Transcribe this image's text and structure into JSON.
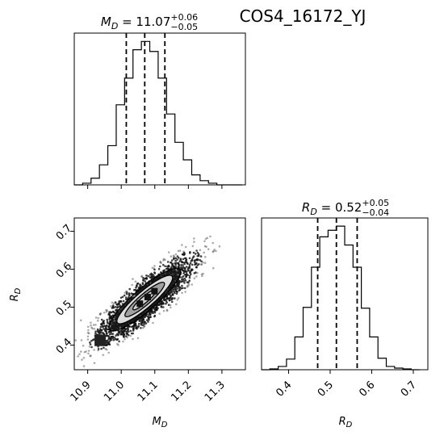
{
  "figure_title": "COS4_16172_YJ",
  "chart_data": [
    {
      "type": "histogram",
      "panel": "MD-marginal",
      "title": {
        "label": "M",
        "sub": "D",
        "value": "11.07",
        "sup": "+0.06",
        "inf": "−0.05"
      },
      "xlim": [
        10.86,
        11.37
      ],
      "xticks": [
        10.9,
        11.0,
        11.1,
        11.2,
        11.3
      ],
      "bins": [
        10.86,
        10.885,
        10.91,
        10.935,
        10.96,
        10.985,
        11.01,
        11.035,
        11.06,
        11.085,
        11.11,
        11.135,
        11.16,
        11.185,
        11.21,
        11.235,
        11.26,
        11.285,
        11.31,
        11.335,
        11.36
      ],
      "counts": [
        0,
        2,
        8,
        24,
        47,
        96,
        128,
        162,
        172,
        160,
        128,
        85,
        51,
        30,
        12,
        5,
        2,
        0,
        0,
        0
      ],
      "ymax": 182,
      "quantiles": [
        11.015,
        11.07,
        11.13
      ]
    },
    {
      "type": "scatter",
      "panel": "MD-RD-joint",
      "xlabel": {
        "label": "M",
        "sub": "D"
      },
      "ylabel": {
        "label": "R",
        "sub": "D"
      },
      "xlim": [
        10.86,
        11.37
      ],
      "ylim": [
        0.335,
        0.735
      ],
      "xticks": [
        10.9,
        11.0,
        11.1,
        11.2,
        11.3
      ],
      "xtick_labels": [
        "10.9",
        "11.0",
        "11.1",
        "11.2",
        "11.3"
      ],
      "yticks": [
        0.4,
        0.5,
        0.6,
        0.7
      ],
      "ytick_labels": [
        "0.4",
        "0.5",
        "0.6",
        "0.7"
      ],
      "mean": [
        11.07,
        0.52
      ],
      "axis_start": [
        10.93,
        0.41
      ],
      "axis_end": [
        11.22,
        0.63
      ],
      "half_width": 0.028,
      "contour_levels": [
        0.45,
        0.75,
        0.95
      ]
    },
    {
      "type": "histogram",
      "panel": "RD-marginal",
      "title": {
        "label": "R",
        "sub": "D",
        "value": "0.52",
        "sup": "+0.05",
        "inf": "−0.04"
      },
      "xlim": [
        0.335,
        0.735
      ],
      "xticks": [
        0.4,
        0.5,
        0.6,
        0.7
      ],
      "xtick_labels": [
        "0.4",
        "0.5",
        "0.6",
        "0.7"
      ],
      "bins": [
        0.335,
        0.355,
        0.375,
        0.395,
        0.415,
        0.435,
        0.455,
        0.475,
        0.495,
        0.515,
        0.535,
        0.555,
        0.575,
        0.595,
        0.615,
        0.635,
        0.655,
        0.675,
        0.695,
        0.715
      ],
      "counts": [
        0,
        1,
        4,
        13,
        40,
        76,
        125,
        162,
        170,
        175,
        152,
        125,
        75,
        40,
        14,
        4,
        2,
        1,
        0
      ],
      "ymax": 185,
      "quantiles": [
        0.47,
        0.515,
        0.565
      ]
    }
  ]
}
